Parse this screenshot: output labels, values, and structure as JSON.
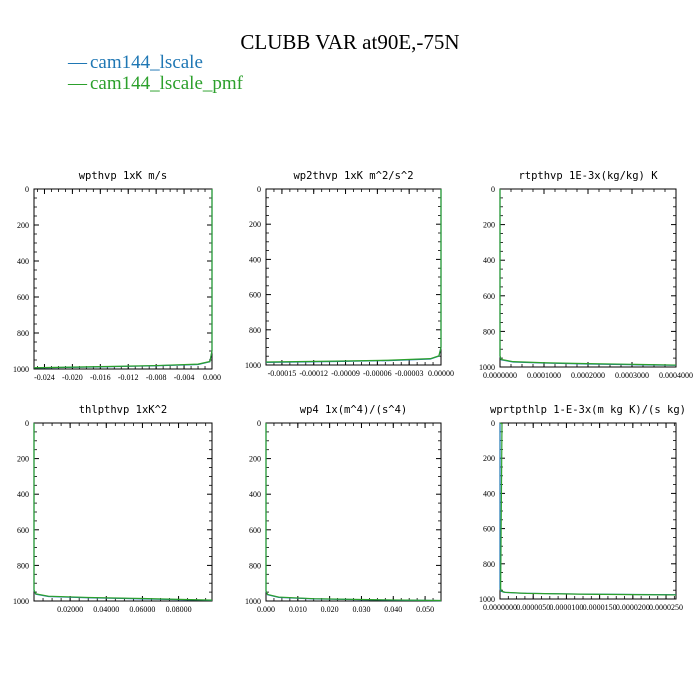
{
  "figure": {
    "title": "CLUBB VAR at90E,-75N",
    "legend": [
      {
        "marker": "—",
        "label": "cam144_lscale",
        "color": "#1f77b4"
      },
      {
        "marker": "—",
        "label": "cam144_lscale_pmf",
        "color": "#2ca02c"
      }
    ]
  },
  "chart_data": [
    {
      "type": "line",
      "title": "wpthvp  1xK m/s",
      "xlim": [
        -0.0255,
        0.0
      ],
      "ylim": [
        1000,
        0
      ],
      "x_ticks": [
        "-0.024",
        "-0.020",
        "-0.016",
        "-0.012",
        "-0.008",
        "-0.004",
        "0.000"
      ],
      "x_tick_values": [
        -0.024,
        -0.02,
        -0.016,
        -0.012,
        -0.008,
        -0.004,
        0.0
      ],
      "y_ticks": [
        "0",
        "200",
        "400",
        "600",
        "800",
        "1000"
      ],
      "y_tick_values": [
        0,
        200,
        400,
        600,
        800,
        1000
      ],
      "series": [
        {
          "color": "#1f77b4",
          "points": [
            [
              0.0,
              0
            ],
            [
              0.0,
              900
            ],
            [
              -0.0003,
              960
            ],
            [
              -0.002,
              975
            ],
            [
              -0.008,
              982
            ],
            [
              -0.016,
              988
            ],
            [
              -0.0255,
              994
            ]
          ]
        },
        {
          "color": "#2ca02c",
          "points": [
            [
              0.0,
              0
            ],
            [
              0.0,
              900
            ],
            [
              -0.0003,
              958
            ],
            [
              -0.002,
              973
            ],
            [
              -0.008,
              981
            ],
            [
              -0.016,
              987
            ],
            [
              -0.0255,
              993
            ]
          ]
        }
      ]
    },
    {
      "type": "line",
      "title": "wp2thvp  1xK m^2/s^2",
      "xlim": [
        -0.000165,
        0.0
      ],
      "ylim": [
        1000,
        0
      ],
      "x_ticks": [
        "-0.00015",
        "-0.00012",
        "-0.00009",
        "-0.00006",
        "-0.00003",
        "0.00000"
      ],
      "x_tick_values": [
        -0.00015,
        -0.00012,
        -9e-05,
        -6e-05,
        -3e-05,
        0.0
      ],
      "y_ticks": [
        "0",
        "200",
        "400",
        "600",
        "800",
        "1000"
      ],
      "y_tick_values": [
        0,
        200,
        400,
        600,
        800,
        1000
      ],
      "series": [
        {
          "color": "#1f77b4",
          "points": [
            [
              0.0,
              0
            ],
            [
              0.0,
              900
            ],
            [
              -2e-06,
              950
            ],
            [
              -1e-05,
              966
            ],
            [
              -5e-05,
              975
            ],
            [
              -0.0001,
              980
            ],
            [
              -0.000165,
              985
            ]
          ]
        },
        {
          "color": "#2ca02c",
          "points": [
            [
              0.0,
              0
            ],
            [
              0.0,
              900
            ],
            [
              -2e-06,
              948
            ],
            [
              -1e-05,
              964
            ],
            [
              -5e-05,
              973
            ],
            [
              -0.0001,
              978
            ],
            [
              -0.000165,
              983
            ]
          ]
        }
      ]
    },
    {
      "type": "line",
      "title": "rtpthvp  1E-3x(kg/kg) K",
      "xlim": [
        0.0,
        0.0004
      ],
      "ylim": [
        1000,
        0
      ],
      "x_ticks": [
        "0.0000000",
        "0.0001000",
        "0.0002000",
        "0.0003000",
        "0.0004000"
      ],
      "x_tick_values": [
        0.0,
        0.0001,
        0.0002,
        0.0003,
        0.0004
      ],
      "y_ticks": [
        "0",
        "200",
        "400",
        "600",
        "800",
        "1000"
      ],
      "y_tick_values": [
        0,
        200,
        400,
        600,
        800,
        1000
      ],
      "series": [
        {
          "color": "#1f77b4",
          "points": [
            [
              0.0,
              0
            ],
            [
              0.0,
              940
            ],
            [
              3e-06,
              960
            ],
            [
              3e-05,
              972
            ],
            [
              0.0001,
              978
            ],
            [
              0.0002,
              983
            ],
            [
              0.0003,
              987
            ],
            [
              0.0004,
              990
            ]
          ]
        },
        {
          "color": "#2ca02c",
          "points": [
            [
              0.0,
              0
            ],
            [
              0.0,
              938
            ],
            [
              3e-06,
              958
            ],
            [
              3e-05,
              970
            ],
            [
              0.0001,
              976
            ],
            [
              0.0002,
              981
            ],
            [
              0.0003,
              985
            ],
            [
              0.0004,
              989
            ]
          ]
        }
      ]
    },
    {
      "type": "line",
      "title": "thlpthvp  1xK^2",
      "xlim": [
        0.0,
        0.0985
      ],
      "ylim": [
        1000,
        0
      ],
      "x_ticks": [
        "0.02000",
        "0.04000",
        "0.06000",
        "0.08000"
      ],
      "x_tick_values": [
        0.02,
        0.04,
        0.06,
        0.08
      ],
      "y_ticks": [
        "0",
        "200",
        "400",
        "600",
        "800",
        "1000"
      ],
      "y_tick_values": [
        0,
        200,
        400,
        600,
        800,
        1000
      ],
      "series": [
        {
          "color": "#1f77b4",
          "points": [
            [
              0.0,
              0
            ],
            [
              0.0,
              940
            ],
            [
              0.001,
              962
            ],
            [
              0.008,
              975
            ],
            [
              0.03,
              982
            ],
            [
              0.06,
              988
            ],
            [
              0.0985,
              996
            ]
          ]
        },
        {
          "color": "#2ca02c",
          "points": [
            [
              0.0,
              0
            ],
            [
              0.0,
              938
            ],
            [
              0.001,
              960
            ],
            [
              0.008,
              973
            ],
            [
              0.03,
              980
            ],
            [
              0.06,
              986
            ],
            [
              0.0985,
              995
            ]
          ]
        }
      ]
    },
    {
      "type": "line",
      "title": "wp4  1x(m^4)/(s^4)",
      "xlim": [
        0.0,
        0.055
      ],
      "ylim": [
        1000,
        0
      ],
      "x_ticks": [
        "0.000",
        "0.010",
        "0.020",
        "0.030",
        "0.040",
        "0.050"
      ],
      "x_tick_values": [
        0.0,
        0.01,
        0.02,
        0.03,
        0.04,
        0.05
      ],
      "y_ticks": [
        "0",
        "200",
        "400",
        "600",
        "800",
        "1000"
      ],
      "y_tick_values": [
        0,
        200,
        400,
        600,
        800,
        1000
      ],
      "series": [
        {
          "color": "#1f77b4",
          "points": [
            [
              0.0,
              0
            ],
            [
              0.0,
              945
            ],
            [
              0.0005,
              965
            ],
            [
              0.004,
              980
            ],
            [
              0.015,
              988
            ],
            [
              0.035,
              994
            ],
            [
              0.055,
              998
            ]
          ]
        },
        {
          "color": "#2ca02c",
          "points": [
            [
              0.0,
              0
            ],
            [
              0.0,
              943
            ],
            [
              0.0005,
              963
            ],
            [
              0.004,
              978
            ],
            [
              0.015,
              987
            ],
            [
              0.035,
              993
            ],
            [
              0.055,
              997
            ]
          ]
        }
      ]
    },
    {
      "type": "line",
      "title": "wprtpthlp  1-E-3x(m kg K)/(s kg)",
      "xlim": [
        0.0,
        2.65e-05
      ],
      "ylim": [
        1000,
        0
      ],
      "x_ticks": [
        "0.0000000",
        "0.0000050",
        "0.0000100",
        "0.0000150",
        "0.0000200",
        "0.0000250"
      ],
      "x_tick_values": [
        0.0,
        5e-06,
        1e-05,
        1.5e-05,
        2e-05,
        2.5e-05
      ],
      "y_ticks": [
        "0",
        "200",
        "400",
        "600",
        "800",
        "1000"
      ],
      "y_tick_values": [
        0,
        200,
        400,
        600,
        800,
        1000
      ],
      "series": [
        {
          "color": "#1f77b4",
          "points": [
            [
              0.0,
              0
            ],
            [
              0.0,
              940
            ],
            [
              1e-07,
              955
            ],
            [
              6e-07,
              962
            ],
            [
              3e-06,
              967
            ],
            [
              1.2e-05,
              972
            ],
            [
              2.65e-05,
              976
            ]
          ]
        },
        {
          "color": "#2ca02c",
          "points": [
            [
              0.0,
              0
            ],
            [
              3e-07,
              5
            ],
            [
              1e-07,
              940
            ],
            [
              2e-07,
              955
            ],
            [
              8e-07,
              962
            ],
            [
              4e-06,
              968
            ],
            [
              1.3e-05,
              973
            ],
            [
              2.65e-05,
              977
            ]
          ]
        }
      ]
    }
  ]
}
